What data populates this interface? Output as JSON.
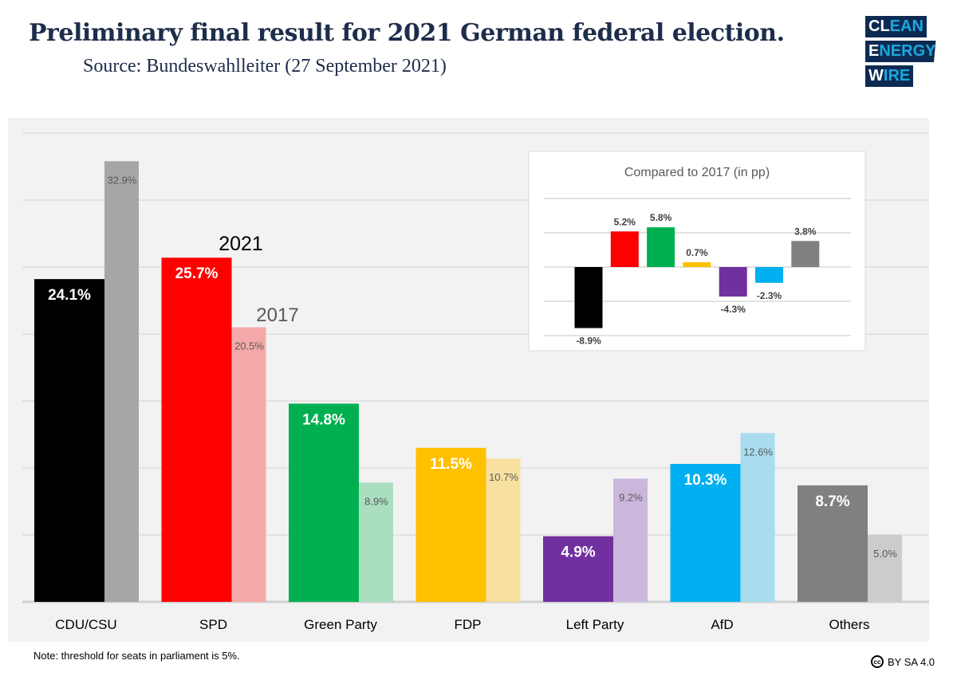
{
  "header": {
    "title": "Preliminary final result for 2021 German federal election.",
    "subtitle": "Source: Bundeswahlleiter (27 September 2021)",
    "logo": {
      "line1_a": "CL",
      "line1_b": "EAN",
      "line2_a": "E",
      "line2_b": "NERGY",
      "line3_a": "W",
      "line3_b": "IRE"
    }
  },
  "footer": {
    "note": "Note: threshold for seats in parliament is 5%.",
    "license_icon": "creative-commons-icon",
    "license_icon_text": "cc",
    "license": "BY SA 4.0"
  },
  "chart_data": [
    {
      "type": "bar",
      "categories": [
        "CDU/CSU",
        "SPD",
        "Green Party",
        "FDP",
        "Left Party",
        "AfD",
        "Others"
      ],
      "series": [
        {
          "name": "2021",
          "values": [
            24.1,
            25.7,
            14.8,
            11.5,
            4.9,
            10.3,
            8.7
          ],
          "labels": [
            "24.1%",
            "25.7%",
            "14.8%",
            "11.5%",
            "4.9%",
            "10.3%",
            "8.7%"
          ],
          "colors": [
            "#000000",
            "#ff0000",
            "#00b050",
            "#ffc000",
            "#7030a0",
            "#00b0f0",
            "#808080"
          ]
        },
        {
          "name": "2017",
          "values": [
            32.9,
            20.5,
            8.9,
            10.7,
            9.2,
            12.6,
            5.0
          ],
          "labels": [
            "32.9%",
            "20.5%",
            "8.9%",
            "10.7%",
            "9.2%",
            "12.6%",
            "5.0%"
          ],
          "colors": [
            "#a6a6a6",
            "#f4a9a8",
            "#a9dfbf",
            "#f7e0a0",
            "#cbb6dc",
            "#a9dcef",
            "#cccccc"
          ]
        }
      ],
      "ylim": [
        0,
        35
      ],
      "grid": true,
      "gridline_step": 5,
      "series_annotations": {
        "s2021": "2021",
        "s2017": "2017"
      }
    },
    {
      "type": "bar",
      "title": "Compared to 2017 (in pp)",
      "categories": [
        "CDU/CSU",
        "SPD",
        "Green Party",
        "FDP",
        "Left Party",
        "AfD",
        "Others"
      ],
      "values": [
        -8.9,
        5.2,
        5.8,
        0.7,
        -4.3,
        -2.3,
        3.8
      ],
      "labels": [
        "-8.9%",
        "5.2%",
        "5.8%",
        "0.7%",
        "-4.3%",
        "-2.3%",
        "3.8%"
      ],
      "colors": [
        "#000000",
        "#ff0000",
        "#00b050",
        "#ffc000",
        "#7030a0",
        "#00b0f0",
        "#808080"
      ],
      "ylim": [
        -10,
        10
      ],
      "grid": true,
      "gridline_step": 5,
      "placement": "top-right"
    }
  ]
}
